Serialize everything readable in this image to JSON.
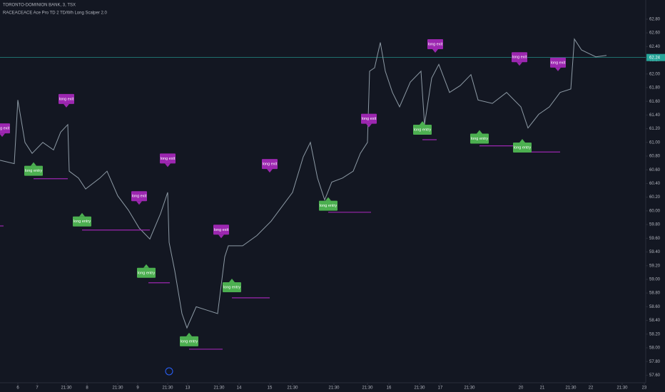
{
  "chart_data": {
    "type": "line",
    "title": "TORONTO-DOMINION BANK, 3, TSX",
    "subtitle": "RACEACEACE Ace Pro TD 2 TD/Wh Long Scalper 2.0",
    "xlim": [
      0,
      905
    ],
    "ylim": [
      57.49,
      63.08
    ],
    "xticks": [
      {
        "value": 25,
        "label": "6"
      },
      {
        "value": 52,
        "label": "7"
      },
      {
        "value": 93,
        "label": "21:30"
      },
      {
        "value": 122,
        "label": "8"
      },
      {
        "value": 165,
        "label": "21:30"
      },
      {
        "value": 193,
        "label": "9"
      },
      {
        "value": 235,
        "label": "21:30"
      },
      {
        "value": 263,
        "label": "13"
      },
      {
        "value": 307,
        "label": "21:30"
      },
      {
        "value": 335,
        "label": "14"
      },
      {
        "value": 378,
        "label": "15"
      },
      {
        "value": 410,
        "label": "21:30"
      },
      {
        "value": 468,
        "label": "21:30"
      },
      {
        "value": 515,
        "label": "21:30"
      },
      {
        "value": 545,
        "label": "16"
      },
      {
        "value": 588,
        "label": "21:30"
      },
      {
        "value": 617,
        "label": "17"
      },
      {
        "value": 658,
        "label": "21:30"
      },
      {
        "value": 730,
        "label": "20"
      },
      {
        "value": 760,
        "label": "21"
      },
      {
        "value": 800,
        "label": "21:30"
      },
      {
        "value": 828,
        "label": "22"
      },
      {
        "value": 872,
        "label": "21:30"
      },
      {
        "value": 903,
        "label": "23"
      }
    ],
    "yticks": [
      {
        "value": 57.6,
        "label": "57.60"
      },
      {
        "value": 57.8,
        "label": "57.80"
      },
      {
        "value": 58.0,
        "label": "58.00"
      },
      {
        "value": 58.2,
        "label": "58.20"
      },
      {
        "value": 58.4,
        "label": "58.40"
      },
      {
        "value": 58.6,
        "label": "58.60"
      },
      {
        "value": 58.8,
        "label": "58.80"
      },
      {
        "value": 59.0,
        "label": "59.00"
      },
      {
        "value": 59.2,
        "label": "59.20"
      },
      {
        "value": 59.4,
        "label": "59.40"
      },
      {
        "value": 59.6,
        "label": "59.60"
      },
      {
        "value": 59.8,
        "label": "59.80"
      },
      {
        "value": 60.0,
        "label": "60.00"
      },
      {
        "value": 60.2,
        "label": "60.20"
      },
      {
        "value": 60.4,
        "label": "60.40"
      },
      {
        "value": 60.6,
        "label": "60.60"
      },
      {
        "value": 60.8,
        "label": "60.80"
      },
      {
        "value": 61.0,
        "label": "61.00"
      },
      {
        "value": 61.2,
        "label": "61.20"
      },
      {
        "value": 61.4,
        "label": "61.40"
      },
      {
        "value": 61.6,
        "label": "61.60"
      },
      {
        "value": 61.8,
        "label": "61.80"
      },
      {
        "value": 62.0,
        "label": "62.00"
      },
      {
        "value": 62.2,
        "label": "62.20"
      },
      {
        "value": 62.4,
        "label": "62.40"
      },
      {
        "value": 62.6,
        "label": "62.60"
      },
      {
        "value": 62.8,
        "label": "62.80"
      }
    ],
    "series": [
      {
        "color": "#8d9aa5",
        "x": [
          0,
          20,
          25,
          35,
          45,
          60,
          75,
          85,
          95,
          97,
          110,
          120,
          140,
          150,
          165,
          180,
          195,
          210,
          225,
          235,
          237,
          245,
          255,
          262,
          275,
          290,
          305,
          315,
          320,
          340,
          360,
          380,
          395,
          410,
          425,
          435,
          445,
          455,
          465,
          480,
          495,
          505,
          515,
          518,
          525,
          533,
          540,
          550,
          560,
          575,
          590,
          595,
          605,
          615,
          630,
          645,
          660,
          670,
          690,
          710,
          730,
          740,
          755,
          770,
          785,
          800,
          805,
          815,
          825,
          835,
          850
        ],
        "values": [
          60.74,
          60.69,
          61.62,
          61.0,
          60.84,
          61.0,
          60.89,
          61.15,
          61.26,
          60.58,
          60.48,
          60.32,
          60.48,
          60.58,
          60.22,
          60.01,
          59.75,
          59.59,
          59.96,
          60.27,
          59.54,
          59.12,
          58.5,
          58.29,
          58.6,
          58.55,
          58.5,
          59.33,
          59.49,
          59.49,
          59.64,
          59.85,
          60.06,
          60.27,
          60.79,
          61.0,
          60.48,
          60.16,
          60.42,
          60.48,
          60.58,
          60.84,
          61.0,
          62.04,
          62.09,
          62.46,
          62.04,
          61.73,
          61.52,
          61.88,
          62.04,
          61.26,
          61.94,
          62.14,
          61.73,
          61.83,
          61.99,
          61.62,
          61.57,
          61.73,
          61.52,
          61.21,
          61.41,
          61.52,
          61.73,
          61.78,
          62.51,
          62.35,
          62.3,
          62.25,
          62.27
        ]
      }
    ],
    "last_price": 62.24,
    "last_price_color": "#26a69a",
    "exit_color": "#9c27b0",
    "entry_color": "#4caf50",
    "level_color": "#9c27b0",
    "signals": [
      {
        "label": "long exit",
        "kind": "exit",
        "x": 3,
        "price": 61.08
      },
      {
        "label": "long exit",
        "kind": "exit",
        "x": 93,
        "price": 61.51
      },
      {
        "label": "long exit",
        "kind": "exit",
        "x": 235,
        "price": 60.64
      },
      {
        "label": "long exit",
        "kind": "exit",
        "x": 195,
        "price": 60.09
      },
      {
        "label": "long exit",
        "kind": "exit",
        "x": 310,
        "price": 59.6
      },
      {
        "label": "long exit",
        "kind": "exit",
        "x": 378,
        "price": 60.56
      },
      {
        "label": "long exit",
        "kind": "exit",
        "x": 517,
        "price": 61.22
      },
      {
        "label": "long exit",
        "kind": "exit",
        "x": 610,
        "price": 62.31
      },
      {
        "label": "long exit",
        "kind": "exit",
        "x": 728,
        "price": 62.12
      },
      {
        "label": "long exit",
        "kind": "exit",
        "x": 782,
        "price": 62.04
      },
      {
        "label": "long entry",
        "kind": "entry",
        "x": 47,
        "price": 60.71
      },
      {
        "label": "long entry",
        "kind": "entry",
        "x": 115,
        "price": 59.97
      },
      {
        "label": "long entry",
        "kind": "entry",
        "x": 205,
        "price": 59.22
      },
      {
        "label": "long entry",
        "kind": "entry",
        "x": 325,
        "price": 59.01
      },
      {
        "label": "long entry",
        "kind": "entry",
        "x": 265,
        "price": 58.22
      },
      {
        "label": "long entry",
        "kind": "entry",
        "x": 460,
        "price": 60.2
      },
      {
        "label": "long entry",
        "kind": "entry",
        "x": 592,
        "price": 61.31
      },
      {
        "label": "long entry",
        "kind": "entry",
        "x": 672,
        "price": 61.18
      },
      {
        "label": "long entry",
        "kind": "entry",
        "x": 732,
        "price": 61.05
      }
    ],
    "levels": [
      {
        "x": [
          47,
          95
        ],
        "price": 60.47
      },
      {
        "x": [
          115,
          210
        ],
        "price": 59.72
      },
      {
        "x": [
          208,
          238
        ],
        "price": 58.95
      },
      {
        "x": [
          325,
          378
        ],
        "price": 58.73
      },
      {
        "x": [
          265,
          312
        ],
        "price": 57.98
      },
      {
        "x": [
          460,
          520
        ],
        "price": 59.98
      },
      {
        "x": [
          592,
          612
        ],
        "price": 61.04
      },
      {
        "x": [
          672,
          720
        ],
        "price": 60.95
      },
      {
        "x": [
          732,
          785
        ],
        "price": 60.86
      },
      {
        "x": [
          0,
          5
        ],
        "price": 59.78
      }
    ]
  }
}
